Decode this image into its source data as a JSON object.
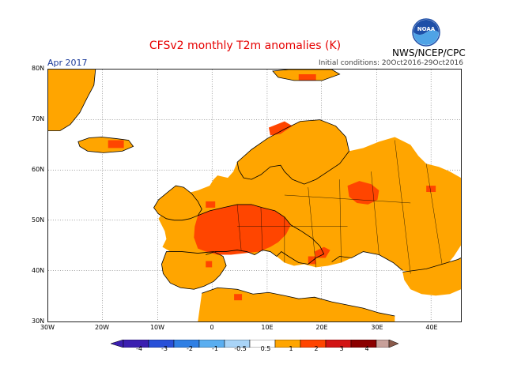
{
  "header": {
    "title": "CFSv2 monthly T2m anomalies (K)",
    "period": "Apr 2017",
    "initial_conditions": "Initial conditions: 20Oct2016-29Oct2016",
    "agency": "NWS/NCEP/CPC",
    "logo_text": "NOAA"
  },
  "axes": {
    "lat_labels": [
      "80N",
      "70N",
      "60N",
      "50N",
      "40N",
      "30N"
    ],
    "lon_labels": [
      "30W",
      "20W",
      "10W",
      "0",
      "10E",
      "20E",
      "30E",
      "40E"
    ]
  },
  "legend": {
    "tick_labels": [
      "-4",
      "-3",
      "-2",
      "-1",
      "-0.5",
      "0.5",
      "1",
      "2",
      "3",
      "4"
    ],
    "colors": [
      "#3b1fb0",
      "#2850d8",
      "#2f7fe4",
      "#5aaef0",
      "#a9d4f7",
      "#ffffff",
      "#ffa500",
      "#ff4500",
      "#d21414",
      "#8b0000",
      "#c8a09a",
      "#8a5a4a"
    ]
  },
  "colors": {
    "anomaly_05_1": "#ffa500",
    "anomaly_1_2": "#ff4500",
    "coastline": "#000000"
  }
}
